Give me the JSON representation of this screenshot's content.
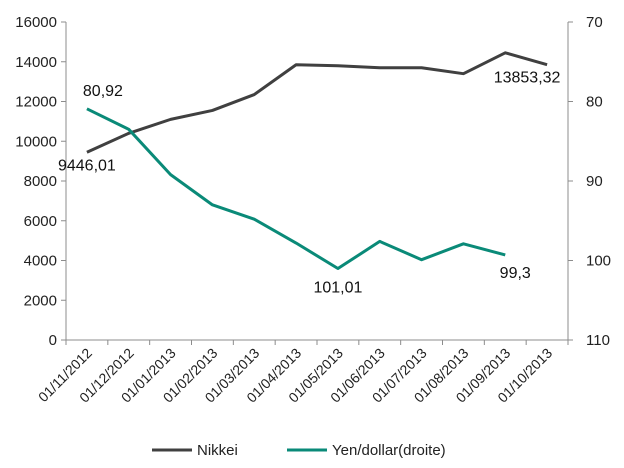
{
  "chart_data": {
    "type": "line",
    "categories": [
      "01/11/2012",
      "01/12/2012",
      "01/01/2013",
      "01/02/2013",
      "01/03/2013",
      "01/04/2013",
      "01/05/2013",
      "01/06/2013",
      "01/07/2013",
      "01/08/2013",
      "01/09/2013",
      "01/10/2013"
    ],
    "left_axis": {
      "min": 0,
      "max": 16000,
      "step": 2000,
      "ticks": [
        "0",
        "2000",
        "4000",
        "6000",
        "8000",
        "10000",
        "12000",
        "14000",
        "16000"
      ]
    },
    "right_axis": {
      "min": 70,
      "max": 110,
      "step": 10,
      "inverted": true,
      "ticks": [
        "70",
        "80",
        "90",
        "100",
        "110"
      ]
    },
    "grid": false,
    "legend_position": "bottom",
    "series": [
      {
        "name": "Nikkei",
        "axis": "left",
        "color": "#404040",
        "x": [
          "01/11/2012",
          "01/12/2012",
          "01/01/2013",
          "01/02/2013",
          "01/03/2013",
          "01/04/2013",
          "01/05/2013",
          "01/06/2013",
          "01/07/2013",
          "01/08/2013",
          "01/09/2013",
          "01/10/2013"
        ],
        "values": [
          9446.01,
          10400,
          11100,
          11550,
          12350,
          13850,
          13800,
          13700,
          13700,
          13400,
          14450,
          13853.32
        ]
      },
      {
        "name": "Yen/dollar(droite)",
        "axis": "right",
        "color": "#0a8a78",
        "x": [
          "01/11/2012",
          "01/12/2012",
          "01/01/2013",
          "01/02/2013",
          "01/03/2013",
          "01/04/2013",
          "01/05/2013",
          "01/06/2013",
          "01/07/2013",
          "01/08/2013",
          "01/09/2013"
        ],
        "values": [
          80.92,
          83.5,
          89.2,
          93.0,
          94.8,
          97.8,
          101.01,
          97.6,
          99.9,
          97.9,
          99.3
        ]
      }
    ],
    "annotations": [
      {
        "text": "9446,01",
        "series": 0,
        "index": 0
      },
      {
        "text": "13853,32",
        "series": 0,
        "index": 11
      },
      {
        "text": "80,92",
        "series": 1,
        "index": 0
      },
      {
        "text": "101,01",
        "series": 1,
        "index": 6
      },
      {
        "text": "99,3",
        "series": 1,
        "index": 10
      }
    ]
  }
}
